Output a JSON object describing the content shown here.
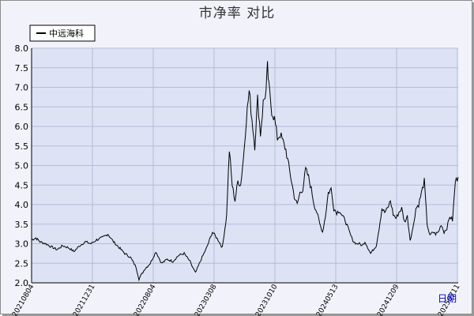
{
  "chart_data": {
    "type": "line",
    "title": "市净率  对比",
    "xlabel": "日期",
    "ylabel": "",
    "ylim": [
      2.0,
      8.0
    ],
    "y_ticks": [
      "2.0",
      "2.5",
      "3.0",
      "3.5",
      "4.0",
      "4.5",
      "5.0",
      "5.5",
      "6.0",
      "6.5",
      "7.0",
      "7.5",
      "8.0"
    ],
    "x_tick_labels": [
      "20210804",
      "20211231",
      "20220804",
      "20230308",
      "20231010",
      "20240513",
      "20241209",
      "20250711"
    ],
    "legend_position": "top-left",
    "grid": true,
    "colors": {
      "plot_bg": "#dde3f5",
      "grid": "#b4bcd8",
      "line": "#000000",
      "frame_bg": "#f2f2fa",
      "xlabel": "#0000cc"
    },
    "series": [
      {
        "name": "中远海科",
        "keypoints": [
          [
            0,
            3.1
          ],
          [
            3,
            3.15
          ],
          [
            6,
            3.05
          ],
          [
            10,
            3.0
          ],
          [
            14,
            2.92
          ],
          [
            18,
            2.85
          ],
          [
            22,
            2.95
          ],
          [
            26,
            2.9
          ],
          [
            30,
            2.8
          ],
          [
            34,
            2.95
          ],
          [
            38,
            3.05
          ],
          [
            42,
            3.0
          ],
          [
            46,
            3.1
          ],
          [
            50,
            3.15
          ],
          [
            54,
            3.25
          ],
          [
            58,
            3.05
          ],
          [
            62,
            2.9
          ],
          [
            66,
            2.75
          ],
          [
            70,
            2.65
          ],
          [
            74,
            2.4
          ],
          [
            76,
            2.1
          ],
          [
            80,
            2.35
          ],
          [
            84,
            2.5
          ],
          [
            88,
            2.8
          ],
          [
            92,
            2.5
          ],
          [
            96,
            2.6
          ],
          [
            100,
            2.55
          ],
          [
            104,
            2.7
          ],
          [
            108,
            2.75
          ],
          [
            112,
            2.55
          ],
          [
            116,
            2.25
          ],
          [
            120,
            2.6
          ],
          [
            124,
            2.9
          ],
          [
            128,
            3.3
          ],
          [
            132,
            3.1
          ],
          [
            135,
            2.9
          ],
          [
            138,
            3.7
          ],
          [
            140,
            5.4
          ],
          [
            142,
            4.5
          ],
          [
            144,
            4.1
          ],
          [
            146,
            4.6
          ],
          [
            148,
            4.5
          ],
          [
            150,
            5.2
          ],
          [
            152,
            6.2
          ],
          [
            154,
            6.9
          ],
          [
            156,
            6.2
          ],
          [
            158,
            5.5
          ],
          [
            160,
            6.7
          ],
          [
            162,
            5.8
          ],
          [
            164,
            6.6
          ],
          [
            166,
            6.9
          ],
          [
            167,
            7.5
          ],
          [
            168,
            7.0
          ],
          [
            170,
            6.4
          ],
          [
            172,
            6.2
          ],
          [
            174,
            5.7
          ],
          [
            176,
            5.8
          ],
          [
            178,
            5.6
          ],
          [
            180,
            5.4
          ],
          [
            182,
            5.0
          ],
          [
            184,
            4.6
          ],
          [
            186,
            4.2
          ],
          [
            188,
            4.0
          ],
          [
            190,
            4.3
          ],
          [
            192,
            4.4
          ],
          [
            194,
            4.9
          ],
          [
            196,
            4.7
          ],
          [
            198,
            4.4
          ],
          [
            200,
            4.0
          ],
          [
            202,
            3.8
          ],
          [
            204,
            3.5
          ],
          [
            206,
            3.3
          ],
          [
            208,
            3.7
          ],
          [
            210,
            4.3
          ],
          [
            212,
            4.4
          ],
          [
            214,
            3.9
          ],
          [
            216,
            3.8
          ],
          [
            218,
            3.85
          ],
          [
            220,
            3.7
          ],
          [
            222,
            3.6
          ],
          [
            224,
            3.4
          ],
          [
            226,
            3.2
          ],
          [
            228,
            3.05
          ],
          [
            230,
            3.0
          ],
          [
            232,
            3.0
          ],
          [
            234,
            2.95
          ],
          [
            236,
            3.05
          ],
          [
            238,
            2.9
          ],
          [
            240,
            2.75
          ],
          [
            242,
            2.85
          ],
          [
            244,
            2.95
          ],
          [
            246,
            3.4
          ],
          [
            248,
            3.9
          ],
          [
            250,
            3.8
          ],
          [
            252,
            3.9
          ],
          [
            254,
            4.1
          ],
          [
            256,
            3.75
          ],
          [
            258,
            3.65
          ],
          [
            260,
            3.8
          ],
          [
            262,
            3.9
          ],
          [
            264,
            3.55
          ],
          [
            266,
            3.7
          ],
          [
            268,
            3.1
          ],
          [
            270,
            3.4
          ],
          [
            272,
            3.9
          ],
          [
            274,
            4.0
          ],
          [
            276,
            4.3
          ],
          [
            278,
            4.6
          ],
          [
            280,
            3.5
          ],
          [
            282,
            3.2
          ],
          [
            284,
            3.3
          ],
          [
            286,
            3.25
          ],
          [
            288,
            3.3
          ],
          [
            290,
            3.5
          ],
          [
            292,
            3.3
          ],
          [
            294,
            3.4
          ],
          [
            296,
            3.7
          ],
          [
            298,
            3.6
          ],
          [
            300,
            4.6
          ],
          [
            302,
            4.7
          ]
        ]
      }
    ]
  }
}
